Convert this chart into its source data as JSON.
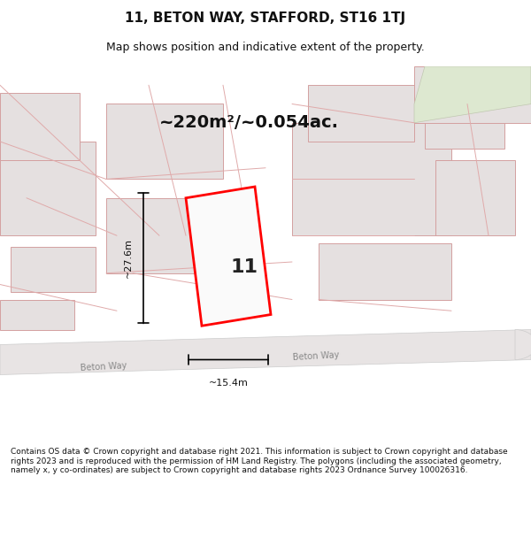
{
  "title_line1": "11, BETON WAY, STAFFORD, ST16 1TJ",
  "title_line2": "Map shows position and indicative extent of the property.",
  "area_label": "~220m²/~0.054ac.",
  "width_label": "~15.4m",
  "height_label": "~27.6m",
  "number_label": "11",
  "footer_text": "Contains OS data © Crown copyright and database right 2021. This information is subject to Crown copyright and database rights 2023 and is reproduced with the permission of HM Land Registry. The polygons (including the associated geometry, namely x, y co-ordinates) are subject to Crown copyright and database rights 2023 Ordnance Survey 100026316.",
  "bg_color": "#f5f0f0",
  "map_bg": "#f0eeee",
  "road_color": "#ffffff",
  "road_stroke": "#cccccc",
  "building_fill": "#e8e4e4",
  "building_stroke": "#ccaaaa",
  "property_fill": "#f8f5f5",
  "property_stroke": "#ff0000",
  "green_fill": "#e8ede0",
  "dim_line_color": "#111111",
  "text_color": "#111111",
  "street_label": "Beton Way",
  "street_label2": "Beton Way"
}
